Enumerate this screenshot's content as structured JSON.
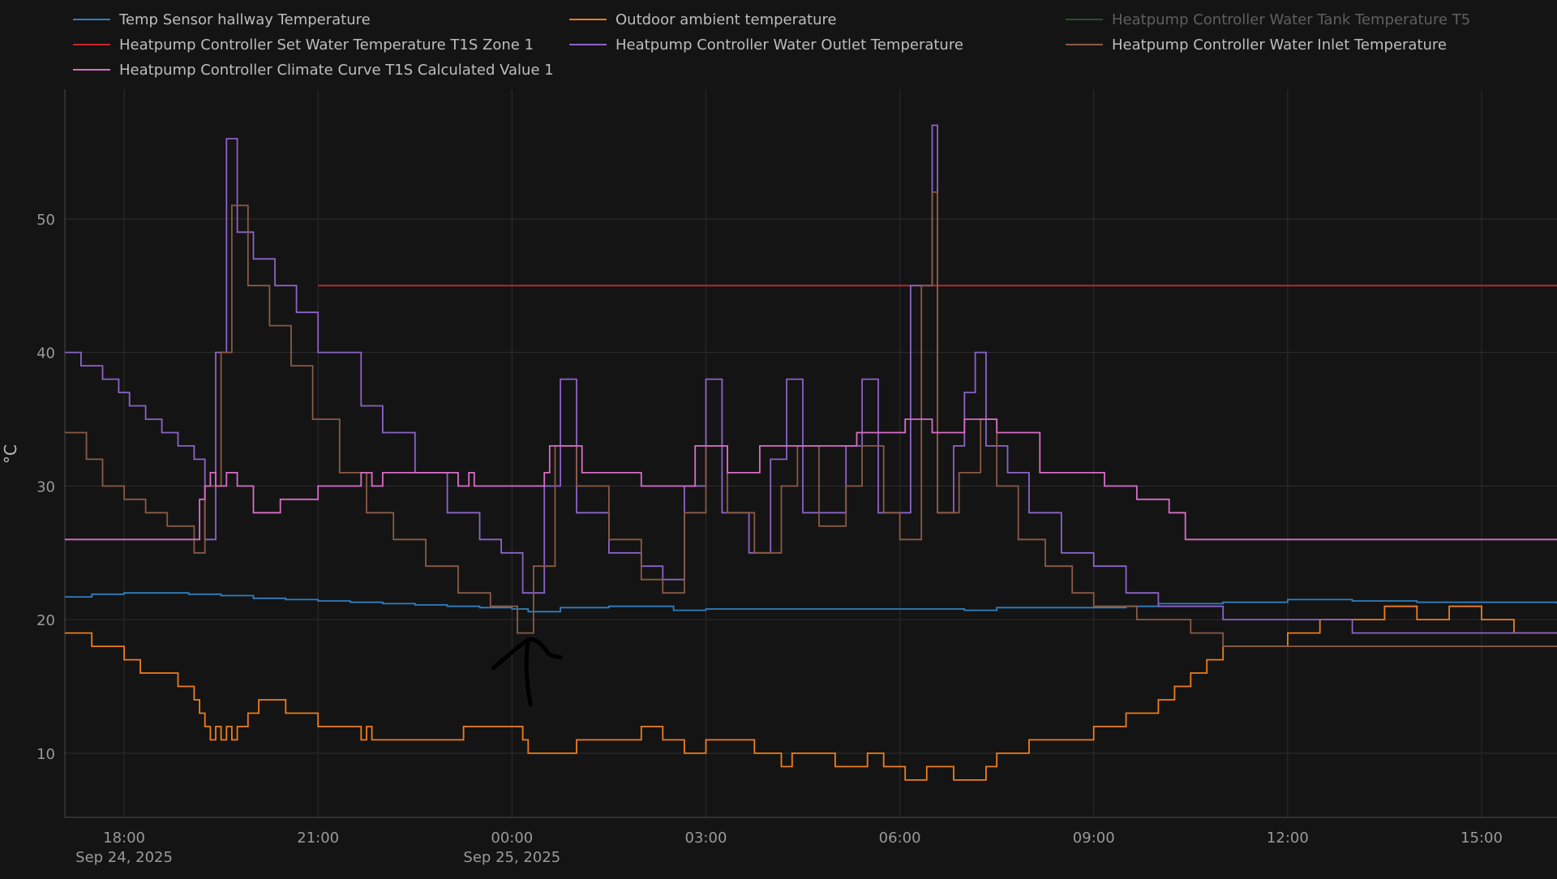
{
  "chart_data": {
    "type": "line",
    "ylabel": "°C",
    "ylim": [
      5.2,
      59.7
    ],
    "yticks": [
      10,
      20,
      30,
      40,
      50
    ],
    "xlim": [
      "2025-09-24T17:05",
      "2025-09-25T16:10"
    ],
    "xticks": [
      {
        "t": "2025-09-24T18:00",
        "label": "18:00",
        "sublabel": "Sep 24, 2025"
      },
      {
        "t": "2025-09-24T21:00",
        "label": "21:00",
        "sublabel": ""
      },
      {
        "t": "2025-09-25T00:00",
        "label": "00:00",
        "sublabel": "Sep 25, 2025"
      },
      {
        "t": "2025-09-25T03:00",
        "label": "03:00",
        "sublabel": ""
      },
      {
        "t": "2025-09-25T06:00",
        "label": "06:00",
        "sublabel": ""
      },
      {
        "t": "2025-09-25T09:00",
        "label": "09:00",
        "sublabel": ""
      },
      {
        "t": "2025-09-25T12:00",
        "label": "12:00",
        "sublabel": ""
      },
      {
        "t": "2025-09-25T15:00",
        "label": "15:00",
        "sublabel": ""
      }
    ],
    "grid": true,
    "legend_position": "top",
    "step": true,
    "series": [
      {
        "name": "Temp Sensor hallway Temperature",
        "color": "#2f7fc1",
        "enabled": true,
        "points": [
          [
            "2025-09-24T17:05",
            21.7
          ],
          [
            "2025-09-24T17:30",
            21.9
          ],
          [
            "2025-09-24T18:00",
            22.0
          ],
          [
            "2025-09-24T18:30",
            22.0
          ],
          [
            "2025-09-24T19:00",
            21.9
          ],
          [
            "2025-09-24T19:30",
            21.8
          ],
          [
            "2025-09-24T20:00",
            21.6
          ],
          [
            "2025-09-24T20:30",
            21.5
          ],
          [
            "2025-09-24T21:00",
            21.4
          ],
          [
            "2025-09-24T21:30",
            21.3
          ],
          [
            "2025-09-24T22:00",
            21.2
          ],
          [
            "2025-09-24T22:30",
            21.1
          ],
          [
            "2025-09-24T23:00",
            21.0
          ],
          [
            "2025-09-24T23:30",
            20.9
          ],
          [
            "2025-09-25T00:00",
            20.8
          ],
          [
            "2025-09-25T00:15",
            20.6
          ],
          [
            "2025-09-25T00:45",
            20.9
          ],
          [
            "2025-09-25T01:30",
            21.0
          ],
          [
            "2025-09-25T02:30",
            20.7
          ],
          [
            "2025-09-25T03:00",
            20.8
          ],
          [
            "2025-09-25T04:00",
            20.8
          ],
          [
            "2025-09-25T05:00",
            20.8
          ],
          [
            "2025-09-25T06:00",
            20.8
          ],
          [
            "2025-09-25T07:00",
            20.7
          ],
          [
            "2025-09-25T07:30",
            20.9
          ],
          [
            "2025-09-25T08:30",
            20.9
          ],
          [
            "2025-09-25T09:30",
            21.0
          ],
          [
            "2025-09-25T10:00",
            21.2
          ],
          [
            "2025-09-25T11:00",
            21.3
          ],
          [
            "2025-09-25T12:00",
            21.5
          ],
          [
            "2025-09-25T13:00",
            21.4
          ],
          [
            "2025-09-25T14:00",
            21.3
          ],
          [
            "2025-09-25T15:00",
            21.3
          ],
          [
            "2025-09-25T16:10",
            21.2
          ]
        ]
      },
      {
        "name": "Outdoor ambient temperature",
        "color": "#f07d1a",
        "enabled": true,
        "points": [
          [
            "2025-09-24T17:05",
            19
          ],
          [
            "2025-09-24T17:30",
            18
          ],
          [
            "2025-09-24T18:00",
            17
          ],
          [
            "2025-09-24T18:15",
            16
          ],
          [
            "2025-09-24T18:50",
            15
          ],
          [
            "2025-09-24T19:05",
            14
          ],
          [
            "2025-09-24T19:10",
            13
          ],
          [
            "2025-09-24T19:15",
            12
          ],
          [
            "2025-09-24T19:20",
            11
          ],
          [
            "2025-09-24T19:25",
            12
          ],
          [
            "2025-09-24T19:30",
            11
          ],
          [
            "2025-09-24T19:35",
            12
          ],
          [
            "2025-09-24T19:40",
            11
          ],
          [
            "2025-09-24T19:45",
            12
          ],
          [
            "2025-09-24T19:55",
            13
          ],
          [
            "2025-09-24T20:05",
            14
          ],
          [
            "2025-09-24T20:30",
            13
          ],
          [
            "2025-09-24T21:00",
            12
          ],
          [
            "2025-09-24T21:40",
            11
          ],
          [
            "2025-09-24T21:45",
            12
          ],
          [
            "2025-09-24T21:50",
            11
          ],
          [
            "2025-09-24T23:15",
            12
          ],
          [
            "2025-09-25T00:10",
            11
          ],
          [
            "2025-09-25T00:15",
            10
          ],
          [
            "2025-09-25T01:00",
            11
          ],
          [
            "2025-09-25T02:00",
            12
          ],
          [
            "2025-09-25T02:20",
            11
          ],
          [
            "2025-09-25T02:40",
            10
          ],
          [
            "2025-09-25T03:00",
            11
          ],
          [
            "2025-09-25T03:45",
            10
          ],
          [
            "2025-09-25T04:10",
            9
          ],
          [
            "2025-09-25T04:20",
            10
          ],
          [
            "2025-09-25T05:00",
            9
          ],
          [
            "2025-09-25T05:30",
            10
          ],
          [
            "2025-09-25T05:45",
            9
          ],
          [
            "2025-09-25T06:05",
            8
          ],
          [
            "2025-09-25T06:25",
            9
          ],
          [
            "2025-09-25T06:50",
            8
          ],
          [
            "2025-09-25T07:20",
            9
          ],
          [
            "2025-09-25T07:30",
            10
          ],
          [
            "2025-09-25T08:00",
            11
          ],
          [
            "2025-09-25T09:00",
            12
          ],
          [
            "2025-09-25T09:30",
            13
          ],
          [
            "2025-09-25T10:00",
            14
          ],
          [
            "2025-09-25T10:15",
            15
          ],
          [
            "2025-09-25T10:30",
            16
          ],
          [
            "2025-09-25T10:45",
            17
          ],
          [
            "2025-09-25T11:00",
            18
          ],
          [
            "2025-09-25T12:00",
            19
          ],
          [
            "2025-09-25T12:30",
            20
          ],
          [
            "2025-09-25T13:00",
            20
          ],
          [
            "2025-09-25T13:30",
            21
          ],
          [
            "2025-09-25T14:00",
            20
          ],
          [
            "2025-09-25T14:30",
            21
          ],
          [
            "2025-09-25T15:00",
            20
          ],
          [
            "2025-09-25T15:30",
            19
          ],
          [
            "2025-09-25T16:10",
            19
          ]
        ]
      },
      {
        "name": "Heatpump Controller Water Tank Temperature T5",
        "color": "#2e8b3e",
        "enabled": false,
        "points": []
      },
      {
        "name": "Heatpump Controller Set Water Temperature T1S Zone 1",
        "color": "#c8262b",
        "enabled": true,
        "points": [
          [
            "2025-09-24T21:00",
            45
          ],
          [
            "2025-09-25T16:10",
            45
          ]
        ]
      },
      {
        "name": "Heatpump Controller Water Outlet Temperature",
        "color": "#8c63c9",
        "enabled": true,
        "points": [
          [
            "2025-09-24T17:05",
            40
          ],
          [
            "2025-09-24T17:20",
            39
          ],
          [
            "2025-09-24T17:40",
            38
          ],
          [
            "2025-09-24T17:55",
            37
          ],
          [
            "2025-09-24T18:05",
            36
          ],
          [
            "2025-09-24T18:20",
            35
          ],
          [
            "2025-09-24T18:35",
            34
          ],
          [
            "2025-09-24T18:50",
            33
          ],
          [
            "2025-09-24T19:05",
            32
          ],
          [
            "2025-09-24T19:15",
            26
          ],
          [
            "2025-09-24T19:25",
            40
          ],
          [
            "2025-09-24T19:35",
            56
          ],
          [
            "2025-09-24T19:45",
            49
          ],
          [
            "2025-09-24T20:00",
            47
          ],
          [
            "2025-09-24T20:20",
            45
          ],
          [
            "2025-09-24T20:40",
            43
          ],
          [
            "2025-09-24T21:00",
            40
          ],
          [
            "2025-09-24T21:40",
            36
          ],
          [
            "2025-09-24T22:00",
            34
          ],
          [
            "2025-09-24T22:30",
            31
          ],
          [
            "2025-09-24T23:00",
            28
          ],
          [
            "2025-09-24T23:30",
            26
          ],
          [
            "2025-09-24T23:50",
            25
          ],
          [
            "2025-09-25T00:10",
            22
          ],
          [
            "2025-09-25T00:30",
            30
          ],
          [
            "2025-09-25T00:45",
            38
          ],
          [
            "2025-09-25T01:00",
            28
          ],
          [
            "2025-09-25T01:30",
            25
          ],
          [
            "2025-09-25T02:00",
            24
          ],
          [
            "2025-09-25T02:20",
            23
          ],
          [
            "2025-09-25T02:40",
            30
          ],
          [
            "2025-09-25T03:00",
            38
          ],
          [
            "2025-09-25T03:15",
            28
          ],
          [
            "2025-09-25T03:40",
            25
          ],
          [
            "2025-09-25T04:00",
            32
          ],
          [
            "2025-09-25T04:15",
            38
          ],
          [
            "2025-09-25T04:30",
            28
          ],
          [
            "2025-09-25T04:50",
            28
          ],
          [
            "2025-09-25T05:10",
            33
          ],
          [
            "2025-09-25T05:25",
            38
          ],
          [
            "2025-09-25T05:40",
            28
          ],
          [
            "2025-09-25T05:55",
            28
          ],
          [
            "2025-09-25T06:10",
            45
          ],
          [
            "2025-09-25T06:30",
            57
          ],
          [
            "2025-09-25T06:35",
            28
          ],
          [
            "2025-09-25T06:50",
            33
          ],
          [
            "2025-09-25T07:00",
            37
          ],
          [
            "2025-09-25T07:10",
            40
          ],
          [
            "2025-09-25T07:20",
            33
          ],
          [
            "2025-09-25T07:40",
            31
          ],
          [
            "2025-09-25T08:00",
            28
          ],
          [
            "2025-09-25T08:30",
            25
          ],
          [
            "2025-09-25T09:00",
            24
          ],
          [
            "2025-09-25T09:30",
            22
          ],
          [
            "2025-09-25T10:00",
            21
          ],
          [
            "2025-09-25T10:30",
            21
          ],
          [
            "2025-09-25T11:00",
            20
          ],
          [
            "2025-09-25T12:00",
            20
          ],
          [
            "2025-09-25T13:00",
            19
          ],
          [
            "2025-09-25T14:00",
            19
          ],
          [
            "2025-09-25T16:10",
            19
          ]
        ]
      },
      {
        "name": "Heatpump Controller Water Inlet Temperature",
        "color": "#8a5a45",
        "enabled": true,
        "points": [
          [
            "2025-09-24T17:05",
            34
          ],
          [
            "2025-09-24T17:25",
            32
          ],
          [
            "2025-09-24T17:40",
            30
          ],
          [
            "2025-09-24T18:00",
            29
          ],
          [
            "2025-09-24T18:20",
            28
          ],
          [
            "2025-09-24T18:40",
            27
          ],
          [
            "2025-09-24T19:05",
            25
          ],
          [
            "2025-09-24T19:15",
            30
          ],
          [
            "2025-09-24T19:30",
            40
          ],
          [
            "2025-09-24T19:40",
            51
          ],
          [
            "2025-09-24T19:55",
            45
          ],
          [
            "2025-09-24T20:15",
            42
          ],
          [
            "2025-09-24T20:35",
            39
          ],
          [
            "2025-09-24T20:55",
            35
          ],
          [
            "2025-09-24T21:20",
            31
          ],
          [
            "2025-09-24T21:45",
            28
          ],
          [
            "2025-09-24T22:10",
            26
          ],
          [
            "2025-09-24T22:40",
            24
          ],
          [
            "2025-09-24T23:10",
            22
          ],
          [
            "2025-09-24T23:40",
            21
          ],
          [
            "2025-09-25T00:05",
            19
          ],
          [
            "2025-09-25T00:20",
            24
          ],
          [
            "2025-09-25T00:40",
            33
          ],
          [
            "2025-09-25T01:00",
            30
          ],
          [
            "2025-09-25T01:30",
            26
          ],
          [
            "2025-09-25T02:00",
            23
          ],
          [
            "2025-09-25T02:20",
            22
          ],
          [
            "2025-09-25T02:40",
            28
          ],
          [
            "2025-09-25T03:00",
            33
          ],
          [
            "2025-09-25T03:20",
            28
          ],
          [
            "2025-09-25T03:45",
            25
          ],
          [
            "2025-09-25T04:10",
            30
          ],
          [
            "2025-09-25T04:25",
            33
          ],
          [
            "2025-09-25T04:45",
            27
          ],
          [
            "2025-09-25T05:10",
            30
          ],
          [
            "2025-09-25T05:25",
            33
          ],
          [
            "2025-09-25T05:45",
            28
          ],
          [
            "2025-09-25T06:00",
            26
          ],
          [
            "2025-09-25T06:20",
            45
          ],
          [
            "2025-09-25T06:30",
            52
          ],
          [
            "2025-09-25T06:35",
            28
          ],
          [
            "2025-09-25T06:55",
            31
          ],
          [
            "2025-09-25T07:15",
            35
          ],
          [
            "2025-09-25T07:30",
            30
          ],
          [
            "2025-09-25T07:50",
            26
          ],
          [
            "2025-09-25T08:15",
            24
          ],
          [
            "2025-09-25T08:40",
            22
          ],
          [
            "2025-09-25T09:00",
            21
          ],
          [
            "2025-09-25T09:40",
            20
          ],
          [
            "2025-09-25T10:30",
            19
          ],
          [
            "2025-09-25T11:00",
            18
          ],
          [
            "2025-09-25T16:10",
            18
          ]
        ]
      },
      {
        "name": "Heatpump Controller Climate Curve T1S Calculated Value 1",
        "color": "#d96cc7",
        "enabled": true,
        "points": [
          [
            "2025-09-24T17:05",
            26
          ],
          [
            "2025-09-24T19:10",
            29
          ],
          [
            "2025-09-24T19:15",
            30
          ],
          [
            "2025-09-24T19:20",
            31
          ],
          [
            "2025-09-24T19:25",
            30
          ],
          [
            "2025-09-24T19:35",
            31
          ],
          [
            "2025-09-24T19:45",
            30
          ],
          [
            "2025-09-24T20:00",
            28
          ],
          [
            "2025-09-24T20:25",
            29
          ],
          [
            "2025-09-24T21:00",
            30
          ],
          [
            "2025-09-24T21:40",
            31
          ],
          [
            "2025-09-24T21:50",
            30
          ],
          [
            "2025-09-24T22:00",
            31
          ],
          [
            "2025-09-24T23:10",
            30
          ],
          [
            "2025-09-24T23:20",
            31
          ],
          [
            "2025-09-24T23:25",
            30
          ],
          [
            "2025-09-25T00:30",
            31
          ],
          [
            "2025-09-25T00:35",
            33
          ],
          [
            "2025-09-25T01:05",
            31
          ],
          [
            "2025-09-25T02:00",
            30
          ],
          [
            "2025-09-25T02:50",
            33
          ],
          [
            "2025-09-25T03:20",
            31
          ],
          [
            "2025-09-25T03:50",
            33
          ],
          [
            "2025-09-25T05:20",
            34
          ],
          [
            "2025-09-25T06:05",
            35
          ],
          [
            "2025-09-25T06:30",
            34
          ],
          [
            "2025-09-25T07:00",
            35
          ],
          [
            "2025-09-25T07:30",
            34
          ],
          [
            "2025-09-25T08:10",
            31
          ],
          [
            "2025-09-25T09:10",
            30
          ],
          [
            "2025-09-25T09:40",
            29
          ],
          [
            "2025-09-25T10:10",
            28
          ],
          [
            "2025-09-25T10:25",
            26
          ],
          [
            "2025-09-25T16:10",
            26
          ]
        ]
      }
    ],
    "annotations": [
      {
        "type": "hand-drawn-arrow",
        "color": "#000000",
        "at": [
          "2025-09-25T00:15",
          18.5
        ]
      }
    ]
  }
}
